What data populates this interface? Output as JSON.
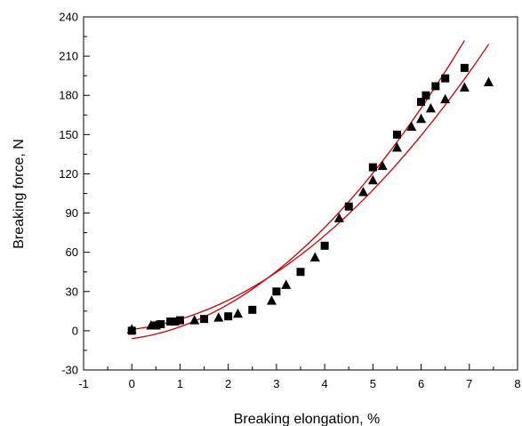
{
  "chart_data": {
    "type": "scatter",
    "title": "",
    "xlabel": "Breaking elongation, %",
    "ylabel": "Breaking force, N",
    "xlim": [
      -1,
      8
    ],
    "ylim": [
      -30,
      240
    ],
    "xticks": [
      -1,
      0,
      1,
      2,
      3,
      4,
      5,
      6,
      7,
      8
    ],
    "yticks": [
      -30,
      0,
      30,
      60,
      90,
      120,
      150,
      180,
      210,
      240
    ],
    "grid": false,
    "legend": "none",
    "series": [
      {
        "marker": "square",
        "color": "#000000",
        "points": [
          [
            0.0,
            0
          ],
          [
            0.5,
            4
          ],
          [
            0.6,
            5
          ],
          [
            0.8,
            7
          ],
          [
            0.9,
            7
          ],
          [
            1.0,
            8
          ],
          [
            1.5,
            9
          ],
          [
            2.0,
            11
          ],
          [
            2.5,
            16
          ],
          [
            3.0,
            30
          ],
          [
            3.5,
            45
          ],
          [
            4.0,
            65
          ],
          [
            4.5,
            95
          ],
          [
            5.0,
            125
          ],
          [
            5.5,
            150
          ],
          [
            6.0,
            175
          ],
          [
            6.1,
            180
          ],
          [
            6.3,
            187
          ],
          [
            6.5,
            193
          ],
          [
            6.9,
            201
          ]
        ]
      },
      {
        "marker": "triangle",
        "color": "#000000",
        "points": [
          [
            0.0,
            1
          ],
          [
            0.4,
            4
          ],
          [
            0.5,
            4
          ],
          [
            1.3,
            8
          ],
          [
            1.8,
            10
          ],
          [
            2.2,
            13
          ],
          [
            2.9,
            23
          ],
          [
            3.2,
            35
          ],
          [
            3.8,
            56
          ],
          [
            4.3,
            86
          ],
          [
            4.8,
            106
          ],
          [
            5.0,
            115
          ],
          [
            5.2,
            126
          ],
          [
            5.5,
            140
          ],
          [
            5.8,
            156
          ],
          [
            6.0,
            162
          ],
          [
            6.2,
            170
          ],
          [
            6.5,
            177
          ],
          [
            6.9,
            186
          ],
          [
            7.4,
            190
          ]
        ]
      }
    ],
    "fit_curves": [
      {
        "color": "#cc0000",
        "x_range": [
          0,
          6.9
        ],
        "y_at_x0": -6,
        "y_at_xmax": 222
      },
      {
        "color": "#cc0000",
        "x_range": [
          0,
          7.4
        ],
        "y_at_x0": 1,
        "y_at_xmax": 219
      }
    ]
  }
}
